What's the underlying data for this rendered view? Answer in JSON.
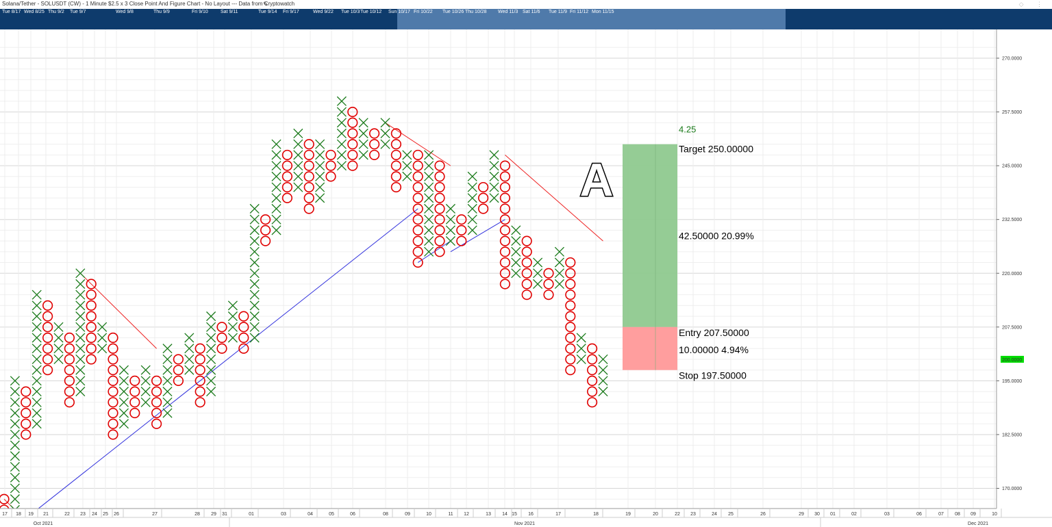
{
  "title": "Solana/Tether - SOLUSDT (CW) - 1 Minute $2.5 x 3 Close Point And Figure Chart - No Layout --- Data from Cryptowatch",
  "navigator": {
    "labels": [
      "Tue 8/17",
      "Wed 8/25",
      "Thu 9/2",
      "Tue 9/7",
      "Wed 9/8",
      "Thu 9/9",
      "Fri 9/10",
      "Sat 9/11",
      "Tue 9/14",
      "Fri 9/17",
      "Wed 9/22",
      "Tue 10/3",
      "Tue 10/12",
      "Sun 10/17",
      "Fri 10/22",
      "Tue 10/26",
      "Thu 10/28",
      "Wed 11/3",
      "Sat 11/6",
      "Tue 11/9",
      "Fri 11/12",
      "Mon 11/15"
    ]
  },
  "colors": {
    "x_marks": "#1a7a1a",
    "o_marks": "#e00000",
    "trend_up": "#3333dd",
    "trend_down": "#ee2222",
    "target_zone": "#8fc98f",
    "stop_zone": "#ff9999",
    "price_badge": "#00dd00"
  },
  "chart_data": {
    "type": "point-and-figure",
    "symbol": "SOLUSDT",
    "box_size": 2.5,
    "reversal": 3,
    "ylim": [
      165,
      275
    ],
    "y_ticks": [
      "270.0000",
      "257.5000",
      "245.0000",
      "232.5000",
      "220.0000",
      "207.5000",
      "195.0000",
      "182.5000",
      "170.0000"
    ],
    "current_price": "200.0000",
    "columns": [
      {
        "type": "O",
        "top": 167.5,
        "bottom": 165
      },
      {
        "type": "X",
        "bottom": 165,
        "top": 195
      },
      {
        "type": "O",
        "top": 192.5,
        "bottom": 182.5
      },
      {
        "type": "X",
        "bottom": 185,
        "top": 215
      },
      {
        "type": "O",
        "top": 212.5,
        "bottom": 197.5
      },
      {
        "type": "X",
        "bottom": 200,
        "top": 207.5
      },
      {
        "type": "O",
        "top": 205,
        "bottom": 190
      },
      {
        "type": "X",
        "bottom": 192.5,
        "top": 220
      },
      {
        "type": "O",
        "top": 217.5,
        "bottom": 200
      },
      {
        "type": "X",
        "bottom": 202.5,
        "top": 207.5
      },
      {
        "type": "O",
        "top": 205,
        "bottom": 182.5
      },
      {
        "type": "X",
        "bottom": 185,
        "top": 197.5
      },
      {
        "type": "O",
        "top": 195,
        "bottom": 187.5
      },
      {
        "type": "X",
        "bottom": 190,
        "top": 197.5
      },
      {
        "type": "O",
        "top": 195,
        "bottom": 185
      },
      {
        "type": "X",
        "bottom": 187.5,
        "top": 202.5
      },
      {
        "type": "O",
        "top": 200,
        "bottom": 195
      },
      {
        "type": "X",
        "bottom": 197.5,
        "top": 205
      },
      {
        "type": "O",
        "top": 202.5,
        "bottom": 190
      },
      {
        "type": "X",
        "bottom": 192.5,
        "top": 210
      },
      {
        "type": "O",
        "top": 207.5,
        "bottom": 202.5
      },
      {
        "type": "X",
        "bottom": 205,
        "top": 212.5
      },
      {
        "type": "O",
        "top": 210,
        "bottom": 202.5
      },
      {
        "type": "X",
        "bottom": 205,
        "top": 235
      },
      {
        "type": "O",
        "top": 232.5,
        "bottom": 227.5
      },
      {
        "type": "X",
        "bottom": 230,
        "top": 250
      },
      {
        "type": "O",
        "top": 247.5,
        "bottom": 237.5
      },
      {
        "type": "X",
        "bottom": 240,
        "top": 252.5
      },
      {
        "type": "O",
        "top": 250,
        "bottom": 235
      },
      {
        "type": "X",
        "bottom": 237.5,
        "top": 250
      },
      {
        "type": "O",
        "top": 247.5,
        "bottom": 242.5
      },
      {
        "type": "X",
        "bottom": 245,
        "top": 260
      },
      {
        "type": "O",
        "top": 257.5,
        "bottom": 245
      },
      {
        "type": "X",
        "bottom": 247.5,
        "top": 255
      },
      {
        "type": "O",
        "top": 252.5,
        "bottom": 247.5
      },
      {
        "type": "X",
        "bottom": 250,
        "top": 255
      },
      {
        "type": "O",
        "top": 252.5,
        "bottom": 240
      },
      {
        "type": "X",
        "bottom": 242.5,
        "top": 247.5
      },
      {
        "type": "O",
        "top": 247.5,
        "bottom": 222.5
      },
      {
        "type": "X",
        "bottom": 225,
        "top": 247.5
      },
      {
        "type": "O",
        "top": 245,
        "bottom": 225
      },
      {
        "type": "X",
        "bottom": 227.5,
        "top": 235
      },
      {
        "type": "O",
        "top": 232.5,
        "bottom": 227.5
      },
      {
        "type": "X",
        "bottom": 230,
        "top": 242.5
      },
      {
        "type": "O",
        "top": 240,
        "bottom": 235
      },
      {
        "type": "X",
        "bottom": 237.5,
        "top": 247.5
      },
      {
        "type": "O",
        "top": 245,
        "bottom": 217.5
      },
      {
        "type": "X",
        "bottom": 220,
        "top": 230
      },
      {
        "type": "O",
        "top": 227.5,
        "bottom": 215
      },
      {
        "type": "X",
        "bottom": 217.5,
        "top": 222.5
      },
      {
        "type": "O",
        "top": 220,
        "bottom": 215
      },
      {
        "type": "X",
        "bottom": 217.5,
        "top": 225
      },
      {
        "type": "O",
        "top": 222.5,
        "bottom": 197.5
      },
      {
        "type": "X",
        "bottom": 200,
        "top": 205
      },
      {
        "type": "O",
        "top": 202.5,
        "bottom": 190
      },
      {
        "type": "X",
        "bottom": 192.5,
        "top": 200
      }
    ],
    "trend_lines": {
      "support": [
        {
          "from": [
            3,
            165
          ],
          "to": [
            38,
            235
          ]
        },
        {
          "from": [
            38,
            222.5
          ],
          "to": [
            41,
            227.5
          ]
        },
        {
          "from": [
            41,
            225
          ],
          "to": [
            46,
            232.5
          ]
        }
      ],
      "resistance": [
        {
          "from": [
            0,
            167.5
          ],
          "to": [
            1,
            165
          ]
        },
        {
          "from": [
            7,
            220
          ],
          "to": [
            13,
            205
          ]
        },
        {
          "from": [
            13,
            205
          ],
          "to": [
            14,
            202.5
          ]
        },
        {
          "from": [
            35,
            255
          ],
          "to": [
            41,
            245
          ]
        },
        {
          "from": [
            46,
            247.5
          ],
          "to": [
            55,
            227.5
          ]
        }
      ]
    },
    "annotations": {
      "pattern_label": "A",
      "risk_reward": "4.25",
      "target_text": "Target  250.00000",
      "reward_text": "42.50000  20.99%",
      "entry_text": "Entry  207.50000",
      "risk_text": "10.00000  4.94%",
      "stop_text": "Stop  197.50000",
      "target": 250,
      "entry": 207.5,
      "stop": 197.5
    },
    "x_ticks": [
      "17",
      "18",
      "19",
      "21",
      "22",
      "23",
      "24",
      "25",
      "26",
      "27",
      "28",
      "29",
      "31",
      "01",
      "03",
      "04",
      "05",
      "06",
      "08",
      "09",
      "10",
      "11",
      "12",
      "13",
      "14",
      "15",
      "16",
      "17",
      "18",
      "19",
      "20",
      "22",
      "23",
      "24",
      "25",
      "26",
      "29",
      "30",
      "01",
      "02",
      "03",
      "06",
      "07",
      "08",
      "09",
      "10"
    ],
    "month_labels": [
      "Oct 2021",
      "Nov 2021",
      "Dec 2021"
    ]
  }
}
